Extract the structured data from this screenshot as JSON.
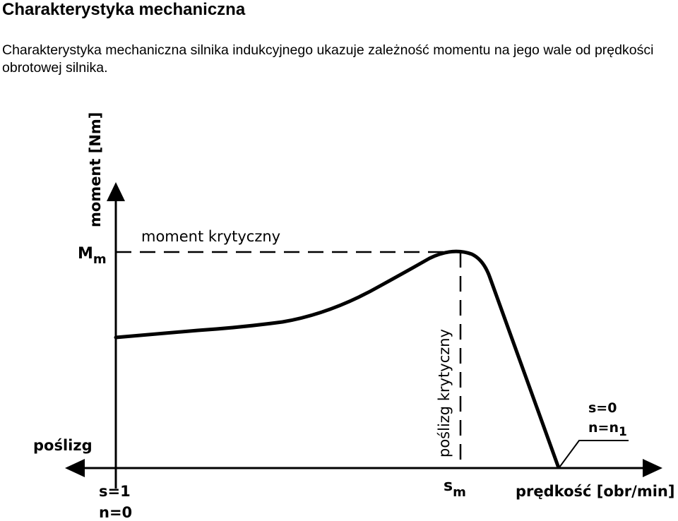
{
  "page": {
    "title": "Charakterystyka mechaniczna",
    "intro": "Charakterystyka mechaniczna silnika indukcyjnego ukazuje zależność momentu na jego wale od prędkości obrotowej silnika."
  },
  "diagram": {
    "y_axis_label": "moment [Nm]",
    "x_axis_label": "prędkość [obr/min]",
    "left_axis_label": "poślizg",
    "mm_main": "M",
    "mm_sub": "m",
    "critical_moment_label": "moment krytyczny",
    "critical_slip_label": "poślizg krytyczny",
    "sm_main": "s",
    "sm_sub": "m",
    "s1_label": "s=1",
    "n0_label": "n=0",
    "s0_label": "s=0",
    "nn1_main": "n=n",
    "nn1_sub": "1"
  },
  "colors": {
    "ink": "#000000",
    "background": "#ffffff"
  }
}
